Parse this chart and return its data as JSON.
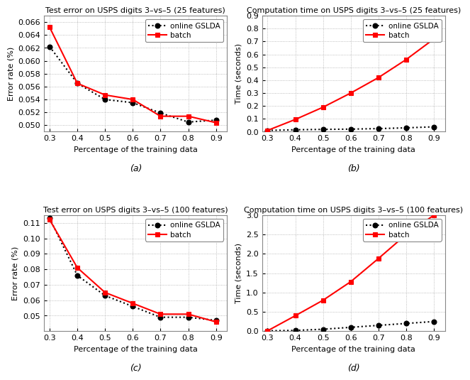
{
  "x": [
    0.3,
    0.4,
    0.5,
    0.6,
    0.7,
    0.8,
    0.9
  ],
  "a_online": [
    0.0622,
    0.0565,
    0.054,
    0.0535,
    0.0519,
    0.0505,
    0.0508
  ],
  "a_batch": [
    0.0652,
    0.0565,
    0.0547,
    0.054,
    0.0514,
    0.0514,
    0.0504
  ],
  "b_online": [
    0.01,
    0.015,
    0.018,
    0.02,
    0.024,
    0.03,
    0.038
  ],
  "b_batch": [
    0.01,
    0.095,
    0.19,
    0.3,
    0.42,
    0.56,
    0.72
  ],
  "c_online": [
    0.113,
    0.076,
    0.063,
    0.056,
    0.049,
    0.049,
    0.047
  ],
  "c_batch": [
    0.112,
    0.081,
    0.065,
    0.058,
    0.051,
    0.051,
    0.046
  ],
  "d_online": [
    0.01,
    0.02,
    0.05,
    0.1,
    0.15,
    0.2,
    0.25
  ],
  "d_batch": [
    0.01,
    0.4,
    0.8,
    1.28,
    1.88,
    2.5,
    3.0
  ],
  "title_a": "Test error on USPS digits 3–vs–5 (25 features)",
  "title_b": "Computation time on USPS digits 3–vs–5 (25 features)",
  "title_c": "Test error on USPS digits 3–vs–5 (100 features)",
  "title_d": "Computation time on USPS digits 3–vs–5 (100 features)",
  "xlabel": "Percentage of the training data",
  "ylabel_error": "Error rate (%)",
  "ylabel_time": "Time (seconds)",
  "label_online": "online GSLDA",
  "label_batch": "batch",
  "sublabel_a": "(a)",
  "sublabel_b": "(b)",
  "sublabel_c": "(c)",
  "sublabel_d": "(d)",
  "online_color": "black",
  "batch_color": "red",
  "online_marker": "o",
  "batch_marker": "s",
  "online_ls": "dotted",
  "batch_ls": "solid",
  "linewidth": 1.5,
  "markersize": 5,
  "ylim_a": [
    0.049,
    0.067
  ],
  "yticks_a": [
    0.05,
    0.052,
    0.054,
    0.056,
    0.058,
    0.06,
    0.062,
    0.064,
    0.066
  ],
  "ylim_b": [
    0.0,
    0.9
  ],
  "yticks_b": [
    0.0,
    0.1,
    0.2,
    0.3,
    0.4,
    0.5,
    0.6,
    0.7,
    0.8,
    0.9
  ],
  "ylim_c": [
    0.04,
    0.115
  ],
  "yticks_c": [
    0.05,
    0.06,
    0.07,
    0.08,
    0.09,
    0.1,
    0.11
  ],
  "ylim_d": [
    0.0,
    3.0
  ],
  "yticks_d": [
    0.0,
    0.5,
    1.0,
    1.5,
    2.0,
    2.5,
    3.0
  ],
  "xticks": [
    0.3,
    0.4,
    0.5,
    0.6,
    0.7,
    0.8,
    0.9
  ],
  "bg_color": "#ffffff",
  "grid_color": "#aaaaaa",
  "title_fontsize": 8.0,
  "label_fontsize": 8,
  "tick_fontsize": 8,
  "legend_fontsize": 7.5
}
